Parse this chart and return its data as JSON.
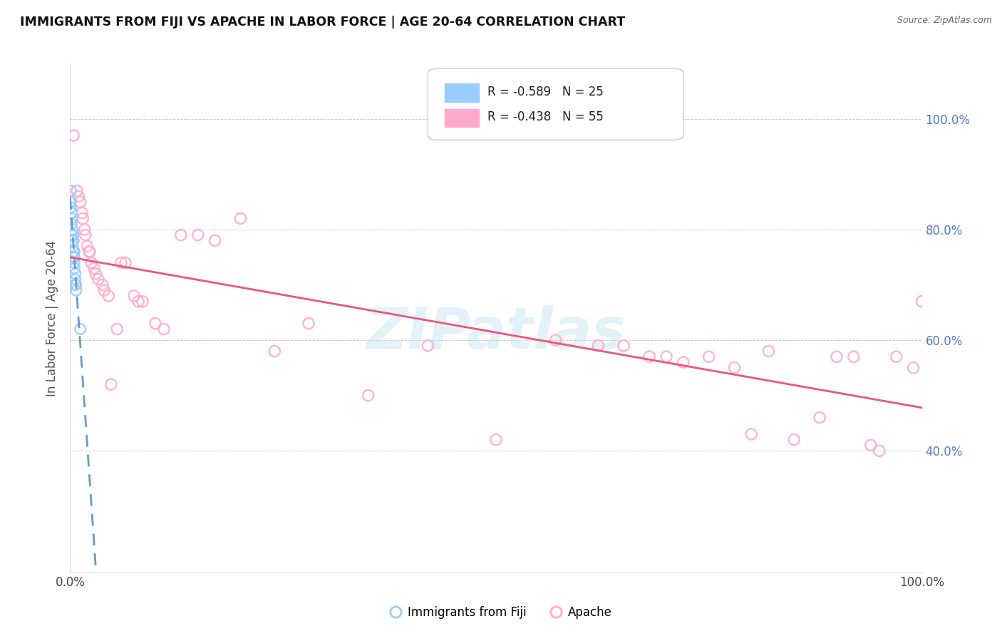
{
  "title": "IMMIGRANTS FROM FIJI VS APACHE IN LABOR FORCE | AGE 20-64 CORRELATION CHART",
  "source": "Source: ZipAtlas.com",
  "ylabel": "In Labor Force | Age 20-64",
  "fiji_color": "#99ccff",
  "apache_color": "#ffaacc",
  "fiji_line_color": "#6699cc",
  "apache_line_color": "#ee5577",
  "fiji_legend_label": "R = -0.589   N = 25",
  "apache_legend_label": "R = -0.438   N = 55",
  "right_ytick_labels": [
    "100.0%",
    "80.0%",
    "60.0%",
    "40.0%"
  ],
  "right_ytick_values": [
    1.0,
    0.8,
    0.6,
    0.4
  ],
  "grid_yticks": [
    0.4,
    0.6,
    0.8,
    1.0
  ],
  "xlim": [
    0.0,
    1.0
  ],
  "ylim": [
    0.18,
    1.1
  ],
  "fiji_x": [
    0.0,
    0.001,
    0.001,
    0.001,
    0.002,
    0.002,
    0.002,
    0.002,
    0.003,
    0.003,
    0.003,
    0.004,
    0.004,
    0.004,
    0.004,
    0.005,
    0.005,
    0.005,
    0.005,
    0.006,
    0.006,
    0.006,
    0.007,
    0.007,
    0.012
  ],
  "fiji_y": [
    0.85,
    0.87,
    0.85,
    0.84,
    0.83,
    0.82,
    0.81,
    0.79,
    0.8,
    0.78,
    0.77,
    0.79,
    0.78,
    0.76,
    0.75,
    0.76,
    0.75,
    0.74,
    0.73,
    0.72,
    0.71,
    0.7,
    0.7,
    0.69,
    0.62
  ],
  "apache_x": [
    0.004,
    0.008,
    0.01,
    0.012,
    0.014,
    0.015,
    0.017,
    0.018,
    0.02,
    0.022,
    0.023,
    0.025,
    0.028,
    0.03,
    0.033,
    0.038,
    0.04,
    0.045,
    0.048,
    0.055,
    0.06,
    0.065,
    0.075,
    0.08,
    0.085,
    0.1,
    0.11,
    0.13,
    0.15,
    0.17,
    0.2,
    0.24,
    0.28,
    0.35,
    0.42,
    0.5,
    0.57,
    0.62,
    0.65,
    0.68,
    0.7,
    0.72,
    0.75,
    0.78,
    0.8,
    0.82,
    0.85,
    0.88,
    0.9,
    0.92,
    0.94,
    0.95,
    0.97,
    0.99,
    1.0
  ],
  "apache_y": [
    0.97,
    0.87,
    0.86,
    0.85,
    0.83,
    0.82,
    0.8,
    0.79,
    0.77,
    0.76,
    0.76,
    0.74,
    0.73,
    0.72,
    0.71,
    0.7,
    0.69,
    0.68,
    0.52,
    0.62,
    0.74,
    0.74,
    0.68,
    0.67,
    0.67,
    0.63,
    0.62,
    0.79,
    0.79,
    0.78,
    0.82,
    0.58,
    0.63,
    0.5,
    0.59,
    0.42,
    0.6,
    0.59,
    0.59,
    0.57,
    0.57,
    0.56,
    0.57,
    0.55,
    0.43,
    0.58,
    0.42,
    0.46,
    0.57,
    0.57,
    0.41,
    0.4,
    0.57,
    0.55,
    0.67
  ],
  "background_color": "#ffffff",
  "watermark_text": "ZIPatlas",
  "watermark_color": "#bbddee"
}
